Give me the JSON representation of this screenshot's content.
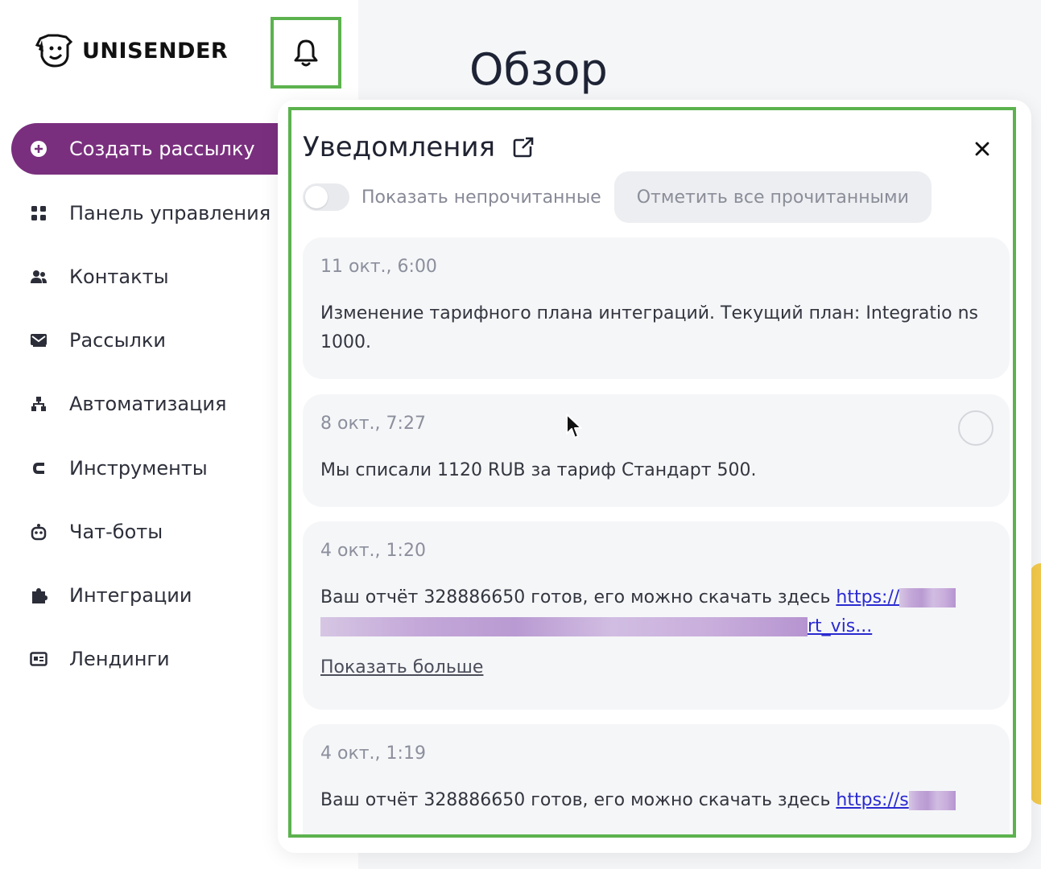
{
  "brand": {
    "name": "UNISENDER"
  },
  "main": {
    "title": "Обзор"
  },
  "sidebar": {
    "items": [
      {
        "label": "Создать рассылку",
        "icon": "plus-circle-icon"
      },
      {
        "label": "Панель управления",
        "icon": "grid-icon"
      },
      {
        "label": "Контакты",
        "icon": "users-icon"
      },
      {
        "label": "Рассылки",
        "icon": "mail-icon"
      },
      {
        "label": "Автоматизация",
        "icon": "flow-icon"
      },
      {
        "label": "Инструменты",
        "icon": "magnet-icon"
      },
      {
        "label": "Чат-боты",
        "icon": "bot-icon"
      },
      {
        "label": "Интеграции",
        "icon": "puzzle-icon"
      },
      {
        "label": "Лендинги",
        "icon": "landing-icon"
      }
    ]
  },
  "notifications": {
    "title": "Уведомления",
    "toggle_label": "Показать непрочитанные",
    "toggle_on": false,
    "mark_all_label": "Отметить все прочитанными",
    "items": [
      {
        "date": "11 окт., 6:00",
        "text": "Изменение тарифного плана интеграций. Текущий план: Integratio ns 1000."
      },
      {
        "date": "8 окт., 7:27",
        "text": "Мы списали 1120 RUB за тариф Стандарт 500."
      },
      {
        "date": "4 окт., 1:20",
        "text": "Ваш отчёт 328886650 готов, его можно скачать здесь ",
        "link_start": "https://",
        "link_end": "rt_vis...",
        "show_more": "Показать больше"
      },
      {
        "date": "4 окт., 1:19",
        "text": "Ваш отчёт 328886650 готов, его можно скачать здесь ",
        "link_start": "https://s"
      }
    ]
  },
  "colors": {
    "primary": "#7a2f7e",
    "highlight": "#5cb24e",
    "link": "#2a2ad1"
  }
}
